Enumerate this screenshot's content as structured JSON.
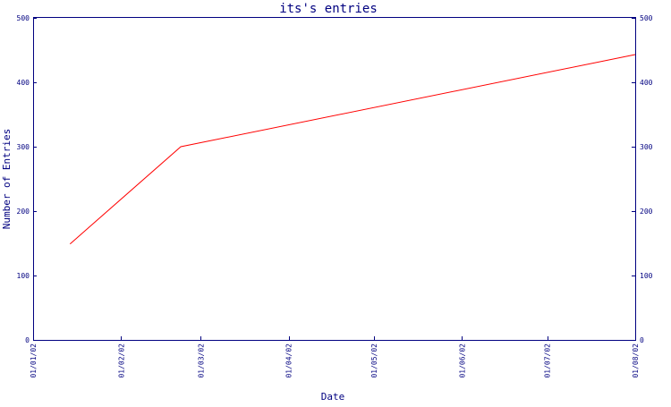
{
  "chart_data": {
    "type": "line",
    "title": "its's entries",
    "xlabel": "Date",
    "ylabel": "Number of Entries",
    "x_tick_labels": [
      "01/01/02",
      "01/02/02",
      "01/03/02",
      "01/04/02",
      "01/05/02",
      "01/06/02",
      "01/07/02",
      "01/08/02"
    ],
    "y_ticks": [
      0,
      100,
      200,
      300,
      400,
      500
    ],
    "ylim": [
      0,
      500
    ],
    "x_range": [
      "2002-01-01",
      "2002-08-01"
    ],
    "grid": false,
    "series": [
      {
        "color": "#ff0000",
        "points": [
          {
            "x": "2002-01-14",
            "y": 149
          },
          {
            "x": "2002-02-22",
            "y": 300
          },
          {
            "x": "2002-08-01",
            "y": 443
          }
        ]
      }
    ]
  }
}
